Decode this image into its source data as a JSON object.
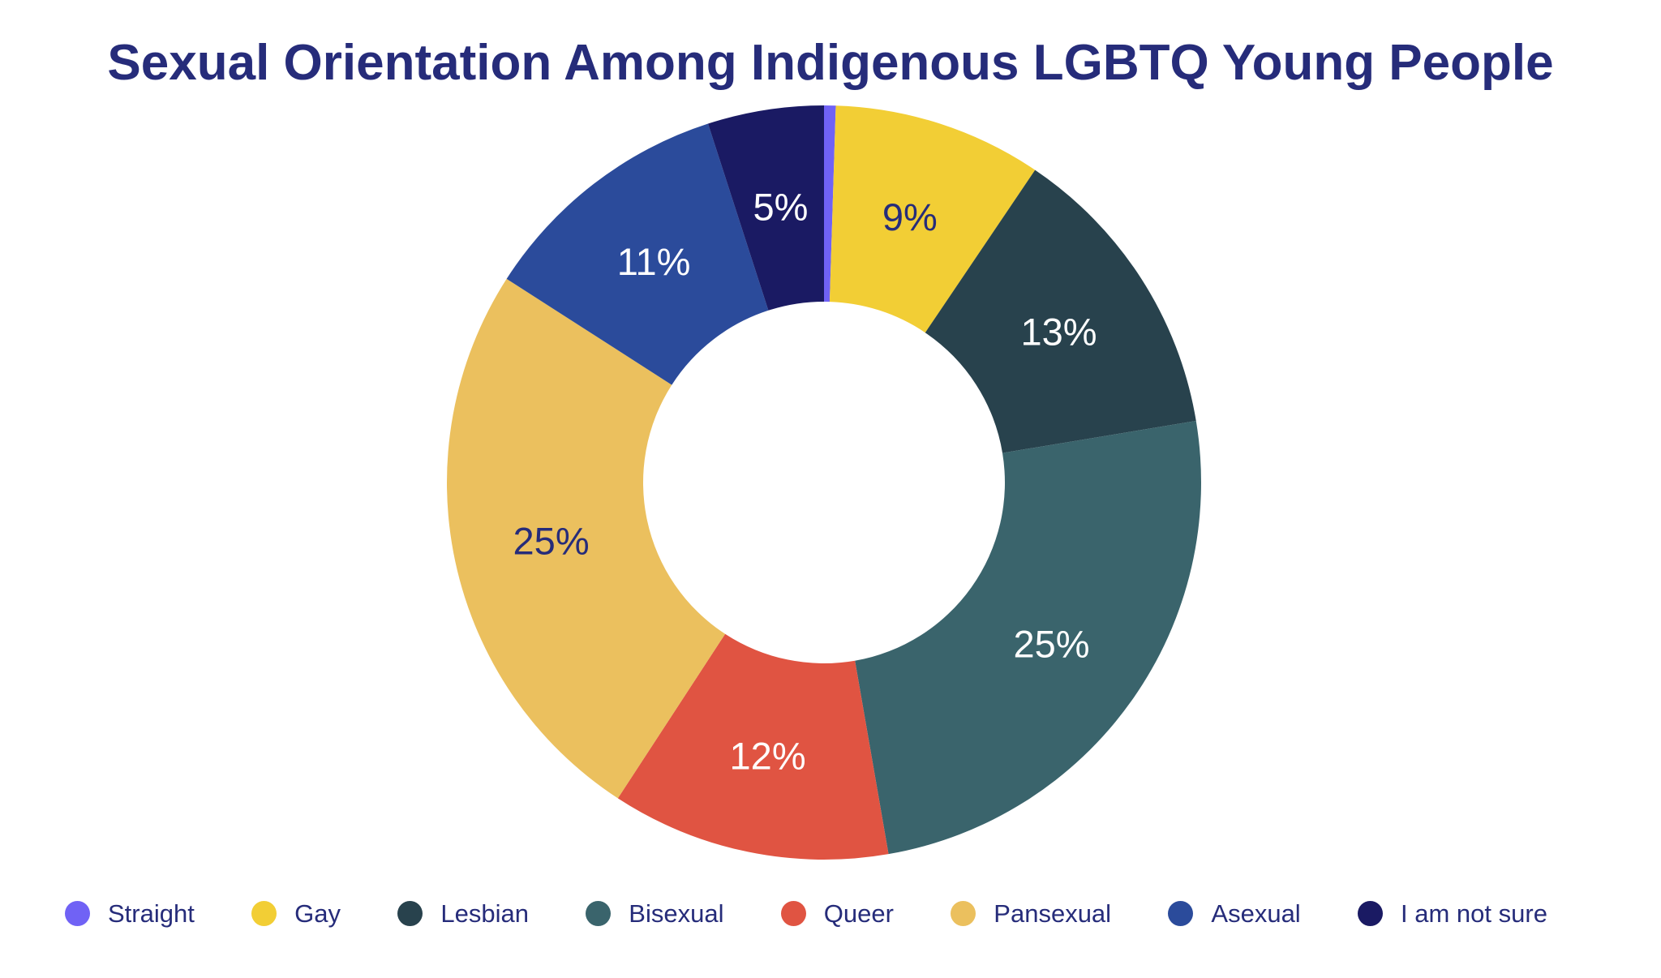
{
  "title": "Sexual Orientation Among Indigenous LGBTQ Young People",
  "colors": {
    "background": "#FFFFFF",
    "title_text": "#262C7A",
    "legend_text": "#262C7A"
  },
  "chart_data": {
    "type": "pie",
    "subtype": "donut",
    "title": "Sexual Orientation Among Indigenous LGBTQ Young People",
    "legend_position": "bottom",
    "inner_radius_ratio": 0.48,
    "start_angle_deg": 0,
    "direction": "clockwise",
    "categories": [
      "Straight",
      "Gay",
      "Lesbian",
      "Bisexual",
      "Queer",
      "Pansexual",
      "Asexual",
      "I am not sure"
    ],
    "values": [
      0.5,
      9,
      13,
      25,
      12,
      25,
      11,
      5
    ],
    "segments": [
      {
        "label": "Straight",
        "value": 0.5,
        "display_label": "",
        "color": "#7062F5",
        "label_color": "#FFFFFF"
      },
      {
        "label": "Gay",
        "value": 9,
        "display_label": "9%",
        "color": "#F2CE35",
        "label_color": "#262C7A"
      },
      {
        "label": "Lesbian",
        "value": 13,
        "display_label": "13%",
        "color": "#28424D",
        "label_color": "#FFFFFF"
      },
      {
        "label": "Bisexual",
        "value": 25,
        "display_label": "25%",
        "color": "#3A646C",
        "label_color": "#FFFFFF"
      },
      {
        "label": "Queer",
        "value": 12,
        "display_label": "12%",
        "color": "#E05442",
        "label_color": "#FFFFFF"
      },
      {
        "label": "Pansexual",
        "value": 25,
        "display_label": "25%",
        "color": "#EBC05E",
        "label_color": "#262C7A"
      },
      {
        "label": "Asexual",
        "value": 11,
        "display_label": "11%",
        "color": "#2B4B9B",
        "label_color": "#FFFFFF"
      },
      {
        "label": "I am not sure",
        "value": 5,
        "display_label": "5%",
        "color": "#1A1A63",
        "label_color": "#FFFFFF"
      }
    ]
  }
}
